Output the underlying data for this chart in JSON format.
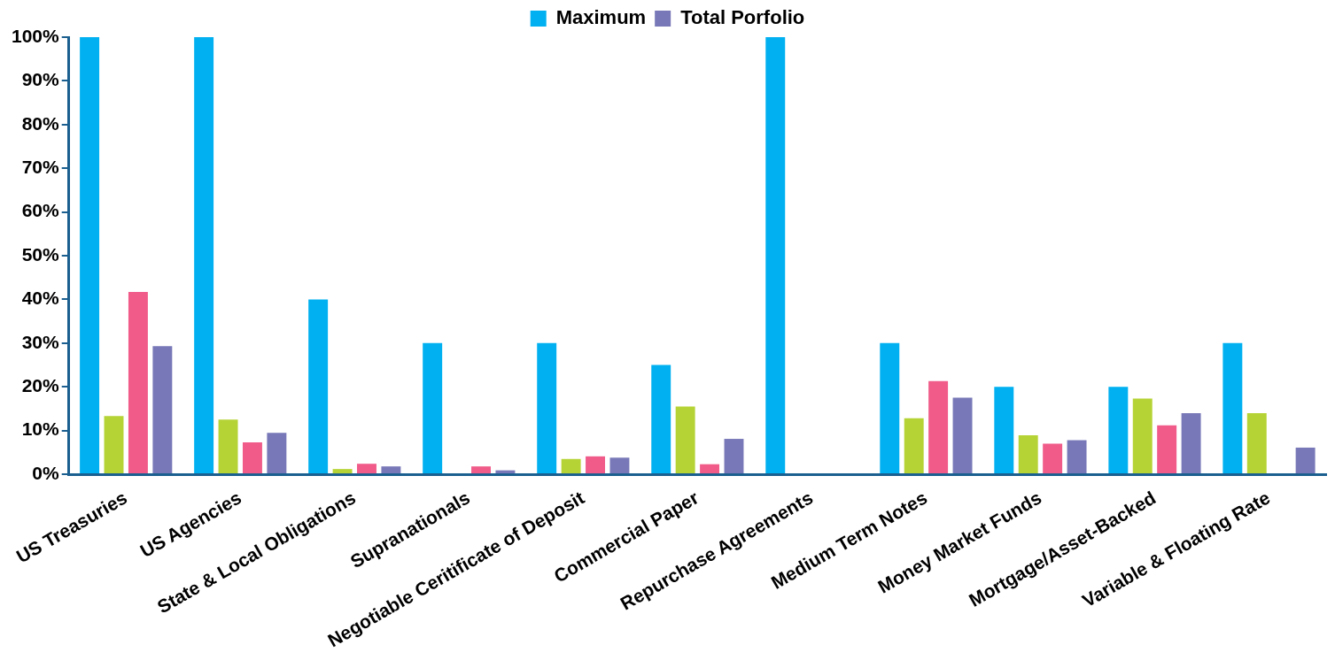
{
  "chart_data": {
    "type": "bar",
    "categories": [
      "US Treasuries",
      "US Agencies",
      "State & Local Obligations",
      "Supranationals",
      "Negotiable Ceritificate of Deposit",
      "Commercial Paper",
      "Repurchase Agreements",
      "Medium Term Notes",
      "Money Market Funds",
      "Mortgage/Asset-Backed",
      "Variable & Floating Rate"
    ],
    "series": [
      {
        "name": "Maximum",
        "color": "#00b0f0",
        "values": [
          100,
          100,
          40,
          30,
          30,
          25,
          100,
          30,
          20,
          20,
          30
        ]
      },
      {
        "color": "#b5d334",
        "values": [
          13.3,
          12.5,
          1.2,
          null,
          3.5,
          15.5,
          null,
          12.8,
          8.9,
          17.3,
          14.0
        ]
      },
      {
        "color": "#f05b8a",
        "values": [
          41.7,
          7.3,
          2.4,
          1.8,
          4.1,
          2.3,
          null,
          21.3,
          7.0,
          11.2,
          null
        ]
      },
      {
        "name": "Total Porfolio",
        "color": "#7878b8",
        "values": [
          29.3,
          9.5,
          1.8,
          0.9,
          3.8,
          8.1,
          null,
          17.5,
          7.8,
          14.0,
          6.1
        ]
      }
    ],
    "ylim": [
      0,
      100
    ],
    "yticks": [
      {
        "value": 0,
        "label": "0%"
      },
      {
        "value": 10,
        "label": "10%"
      },
      {
        "value": 20,
        "label": "20%"
      },
      {
        "value": 30,
        "label": "30%"
      },
      {
        "value": 40,
        "label": "40%"
      },
      {
        "value": 50,
        "label": "50%"
      },
      {
        "value": 60,
        "label": "60%"
      },
      {
        "value": 70,
        "label": "70%"
      },
      {
        "value": 80,
        "label": "80%"
      },
      {
        "value": 90,
        "label": "90%"
      },
      {
        "value": 100,
        "label": "100%"
      }
    ],
    "grid": false,
    "legend": "top"
  }
}
